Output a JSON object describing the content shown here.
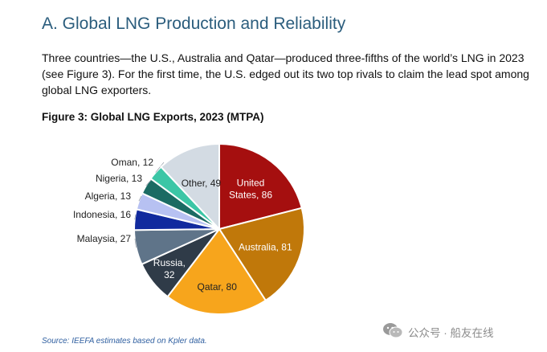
{
  "section": {
    "heading": "A. Global LNG Production and Reliability"
  },
  "intro_text": "Three countries—the U.S., Australia and Qatar—produced three-fifths of the world’s LNG in 2023 (see Figure 3). For the first time, the U.S. edged out its two top rivals to claim the lead spot among global LNG exporters.",
  "figure": {
    "title": "Figure 3: Global LNG Exports, 2023 (MTPA)",
    "source": "Source: IEEFA estimates based on Kpler data."
  },
  "watermark": {
    "text": "公众号 · 船友在线",
    "icon": "wechat-icon"
  },
  "chart_data": {
    "type": "pie",
    "title": "Figure 3: Global LNG Exports, 2023 (MTPA)",
    "unit": "MTPA",
    "start_angle_deg": 0,
    "direction": "clockwise",
    "slices": [
      {
        "name": "United States",
        "value": 86,
        "label_lines": [
          "United",
          "States, 86"
        ],
        "color": "#a50f0f",
        "label_inside": true,
        "text_color": "#ffffff"
      },
      {
        "name": "Australia",
        "value": 81,
        "label_lines": [
          "Australia, 81"
        ],
        "color": "#c0780a",
        "label_inside": true,
        "text_color": "#ffffff"
      },
      {
        "name": "Qatar",
        "value": 80,
        "label_lines": [
          "Qatar, 80"
        ],
        "color": "#f7a51c",
        "label_inside": true,
        "text_color": "#222222"
      },
      {
        "name": "Russia",
        "value": 32,
        "label_lines": [
          "Russia,",
          "32"
        ],
        "color": "#2f3b48",
        "label_inside": true,
        "text_color": "#ffffff"
      },
      {
        "name": "Malaysia",
        "value": 27,
        "label_lines": [
          "Malaysia, 27"
        ],
        "color": "#5f7489",
        "label_inside": false,
        "text_color": "#222222"
      },
      {
        "name": "Indonesia",
        "value": 16,
        "label_lines": [
          "Indonesia, 16"
        ],
        "color": "#112a9e",
        "label_inside": false,
        "text_color": "#222222"
      },
      {
        "name": "Algeria",
        "value": 13,
        "label_lines": [
          "Algeria, 13"
        ],
        "color": "#b7c1f2",
        "label_inside": false,
        "text_color": "#222222"
      },
      {
        "name": "Nigeria",
        "value": 13,
        "label_lines": [
          "Nigeria, 13"
        ],
        "color": "#1b6b63",
        "label_inside": false,
        "text_color": "#222222"
      },
      {
        "name": "Oman",
        "value": 12,
        "label_lines": [
          "Oman, 12"
        ],
        "color": "#3cc6a6",
        "label_inside": false,
        "text_color": "#222222"
      },
      {
        "name": "Other",
        "value": 49,
        "label_lines": [
          "Other, 49"
        ],
        "color": "#d3dbe3",
        "label_inside": true,
        "text_color": "#222222"
      }
    ]
  }
}
